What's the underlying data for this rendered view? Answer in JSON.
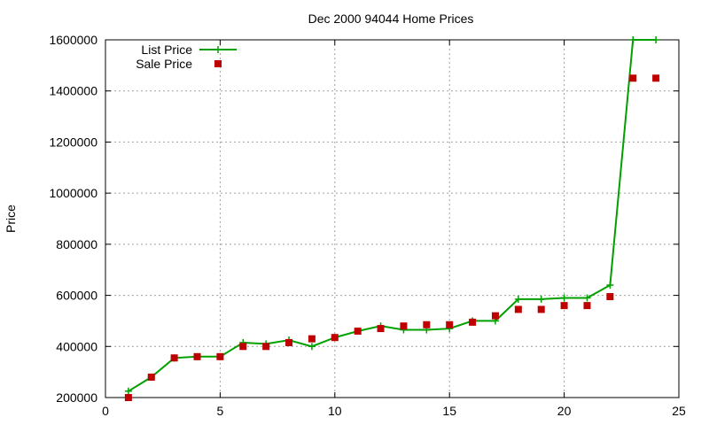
{
  "chart_data": {
    "type": "line",
    "title": "Dec 2000 94044 Home Prices",
    "xlabel": "",
    "ylabel": "Price",
    "xlim": [
      0,
      25
    ],
    "ylim": [
      200000,
      1600000
    ],
    "x_ticks": [
      0,
      5,
      10,
      15,
      20,
      25
    ],
    "y_ticks": [
      200000,
      400000,
      600000,
      800000,
      1000000,
      1200000,
      1400000,
      1600000
    ],
    "grid": true,
    "legend_position": "top-left",
    "series": [
      {
        "name": "List Price",
        "style": "linespoints",
        "color": "#00a000",
        "marker": "plus",
        "x": [
          1,
          2,
          3,
          4,
          5,
          6,
          7,
          8,
          9,
          10,
          11,
          12,
          13,
          14,
          15,
          16,
          17,
          18,
          19,
          20,
          21,
          22,
          23,
          24
        ],
        "values": [
          225000,
          280000,
          355000,
          360000,
          360000,
          415000,
          410000,
          425000,
          400000,
          435000,
          460000,
          480000,
          465000,
          465000,
          470000,
          500000,
          500000,
          585000,
          585000,
          590000,
          590000,
          640000,
          1600000,
          1600000
        ]
      },
      {
        "name": "Sale Price",
        "style": "points",
        "color": "#c00000",
        "marker": "square",
        "x": [
          1,
          2,
          3,
          4,
          5,
          6,
          7,
          8,
          9,
          10,
          11,
          12,
          13,
          14,
          15,
          16,
          17,
          18,
          19,
          20,
          21,
          22,
          23,
          24
        ],
        "values": [
          200000,
          280000,
          355000,
          360000,
          360000,
          400000,
          400000,
          415000,
          430000,
          435000,
          460000,
          470000,
          480000,
          485000,
          485000,
          495000,
          520000,
          545000,
          545000,
          560000,
          560000,
          595000,
          1450000,
          1450000
        ]
      }
    ]
  }
}
